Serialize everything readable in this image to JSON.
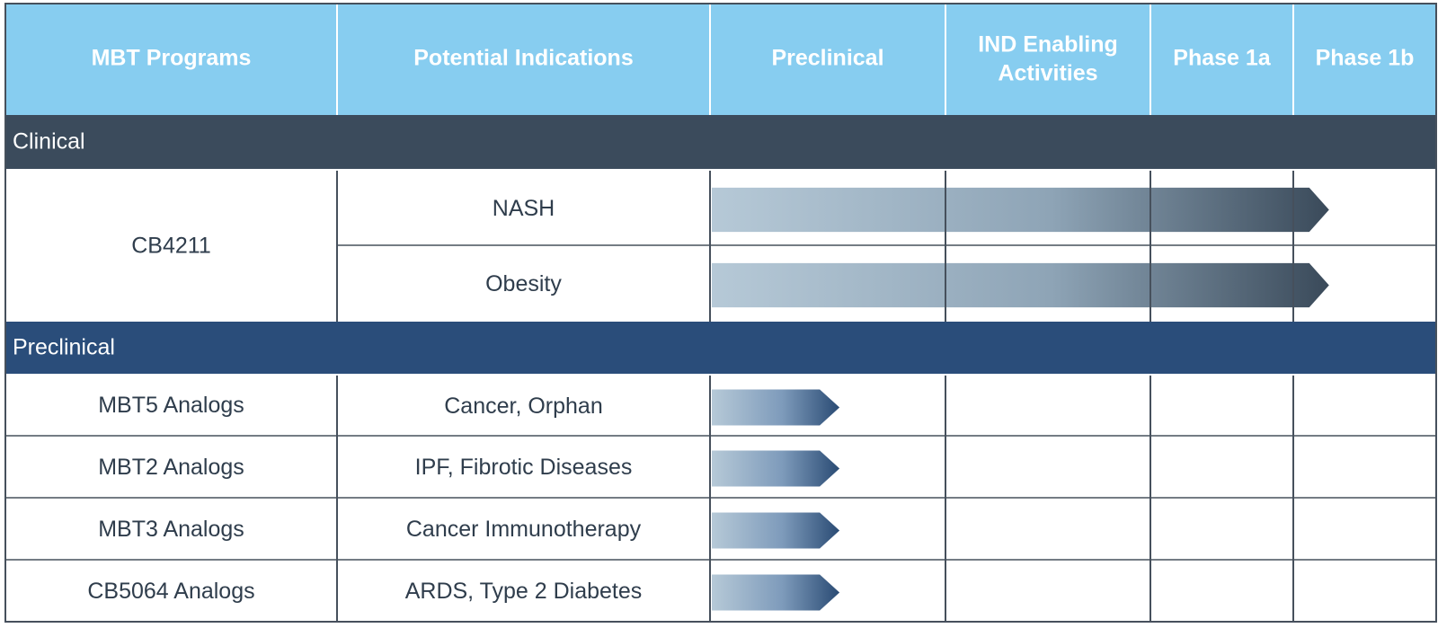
{
  "chart_data": {
    "type": "table",
    "columns": [
      "MBT Programs",
      "Potential Indications",
      "Preclinical",
      "IND Enabling Activities",
      "Phase 1a",
      "Phase 1b"
    ],
    "stages": [
      "Preclinical",
      "IND Enabling Activities",
      "Phase 1a",
      "Phase 1b"
    ],
    "sections": [
      {
        "name": "Clinical",
        "color": "#3b4b5c",
        "arrow_dark": "#3a4a5a",
        "programs": [
          {
            "program": "CB4211",
            "indications": [
              {
                "indication": "NASH",
                "progress": 3.25
              },
              {
                "indication": "Obesity",
                "progress": 3.25
              }
            ]
          }
        ]
      },
      {
        "name": "Preclinical",
        "color": "#2a4d7a",
        "arrow_dark": "#2a4b74",
        "programs": [
          {
            "program": "MBT5 Analogs",
            "indications": [
              {
                "indication": "Cancer, Orphan",
                "progress": 0.55
              }
            ]
          },
          {
            "program": "MBT2 Analogs",
            "indications": [
              {
                "indication": "IPF, Fibrotic Diseases",
                "progress": 0.55
              }
            ]
          },
          {
            "program": "MBT3 Analogs",
            "indications": [
              {
                "indication": "Cancer Immunotherapy",
                "progress": 0.55
              }
            ]
          },
          {
            "program": "CB5064 Analogs",
            "indications": [
              {
                "indication": "ARDS, Type 2 Diabetes",
                "progress": 0.55
              }
            ]
          }
        ]
      }
    ]
  },
  "colors": {
    "header": "#87cdf0",
    "arrow_light": "#b6c9d7",
    "grid": "#46505c"
  }
}
